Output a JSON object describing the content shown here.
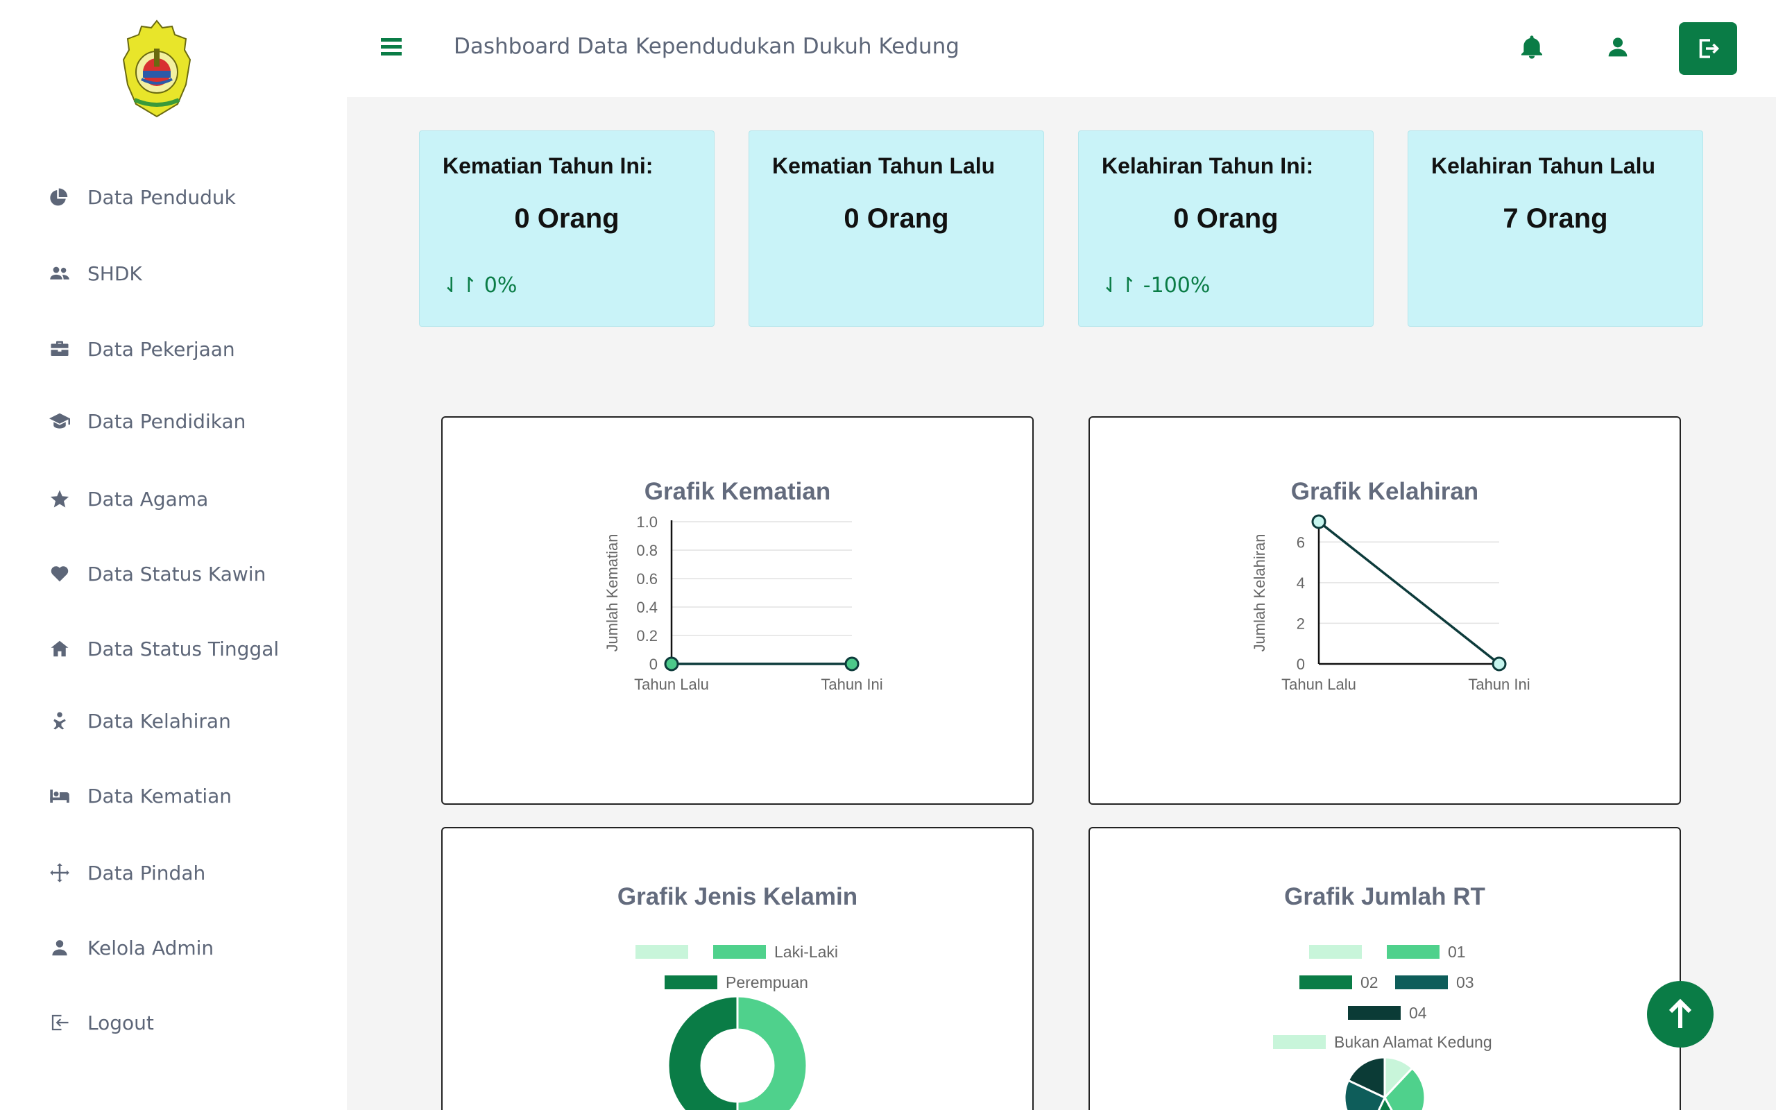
{
  "header": {
    "title": "Dashboard Data Kependudukan Dukuh Kedung"
  },
  "sidebar": {
    "items": [
      {
        "label": "Data Penduduk",
        "icon": "pie-chart-icon"
      },
      {
        "label": "SHDK",
        "icon": "users-icon"
      },
      {
        "label": "Data Pekerjaan",
        "icon": "briefcase-icon"
      },
      {
        "label": "Data Pendidikan",
        "icon": "graduation-cap-icon"
      },
      {
        "label": "Data Agama",
        "icon": "star-icon"
      },
      {
        "label": "Data Status Kawin",
        "icon": "heart-icon"
      },
      {
        "label": "Data Status Tinggal",
        "icon": "home-icon"
      },
      {
        "label": "Data Kelahiran",
        "icon": "baby-icon"
      },
      {
        "label": "Data Kematian",
        "icon": "bed-icon"
      },
      {
        "label": "Data Pindah",
        "icon": "arrows-move-icon"
      },
      {
        "label": "Kelola Admin",
        "icon": "user-icon"
      },
      {
        "label": "Logout",
        "icon": "logout-icon"
      }
    ]
  },
  "stats": [
    {
      "label": "Kematian Tahun Ini:",
      "value": "0 Orang",
      "change": "⇃↾ 0%"
    },
    {
      "label": "Kematian Tahun Lalu",
      "value": "0 Orang",
      "change": ""
    },
    {
      "label": "Kelahiran Tahun Ini:",
      "value": "0 Orang",
      "change": "⇃↾ -100%"
    },
    {
      "label": "Kelahiran Tahun Lalu",
      "value": "7 Orang",
      "change": ""
    }
  ],
  "colors": {
    "accent": "#0a7c46",
    "card_bg": "#c9f3f8",
    "line": "#0d3b3b"
  },
  "chart_data": [
    {
      "type": "line",
      "title": "Grafik Kematian",
      "ylabel": "Jumlah Kematian",
      "categories": [
        "Tahun Lalu",
        "Tahun Ini"
      ],
      "values": [
        0,
        0
      ],
      "ylim": [
        0,
        1.0
      ],
      "yticks": [
        "0",
        "0.2",
        "0.4",
        "0.6",
        "0.8",
        "1.0"
      ],
      "point_color": "#4cc98a"
    },
    {
      "type": "line",
      "title": "Grafik Kelahiran",
      "ylabel": "Jumlah Kelahiran",
      "categories": [
        "Tahun Lalu",
        "Tahun Ini"
      ],
      "values": [
        7,
        0
      ],
      "ylim": [
        0,
        7
      ],
      "yticks": [
        "0",
        "2",
        "4",
        "6"
      ],
      "point_color": "#c6f5ee"
    },
    {
      "type": "pie",
      "title": "Grafik Jenis Kelamin",
      "legend": [
        "",
        "Laki-Laki",
        "Perempuan"
      ],
      "legend_colors": [
        "#c8f5da",
        "#4fd18c",
        "#0a7c46"
      ],
      "values": [
        0,
        50,
        50
      ],
      "colors": [
        "#c8f5da",
        "#4fd18c",
        "#0a7c46"
      ]
    },
    {
      "type": "pie",
      "title": "Grafik Jumlah RT",
      "legend": [
        "",
        "01",
        "02",
        "03",
        "04",
        "Bukan Alamat Kedung"
      ],
      "legend_colors": [
        "#c8f5da",
        "#4fd18c",
        "#0a7c46",
        "#0e5d5a",
        "#0b3b36",
        "#c8f5da"
      ],
      "values": [
        12,
        30,
        15,
        25,
        18,
        0
      ],
      "colors": [
        "#c8f5da",
        "#4fd18c",
        "#0a7c46",
        "#0e5d5a",
        "#0b3b36",
        "#c8f5da"
      ]
    }
  ]
}
